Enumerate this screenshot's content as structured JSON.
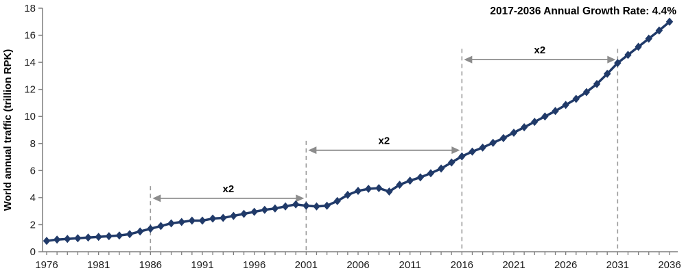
{
  "chart_data": {
    "type": "line",
    "title": "2017-2036 Annual Growth Rate: 4.4%",
    "xlabel": "",
    "ylabel": "World annual traffic (trillion RPK)",
    "xlim": [
      1976,
      2036
    ],
    "ylim": [
      0,
      18
    ],
    "grid": false,
    "legend": null,
    "marker": "diamond",
    "x": [
      1976,
      1977,
      1978,
      1979,
      1980,
      1981,
      1982,
      1983,
      1984,
      1985,
      1986,
      1987,
      1988,
      1989,
      1990,
      1991,
      1992,
      1993,
      1994,
      1995,
      1996,
      1997,
      1998,
      1999,
      2000,
      2001,
      2002,
      2003,
      2004,
      2005,
      2006,
      2007,
      2008,
      2009,
      2010,
      2011,
      2012,
      2013,
      2014,
      2015,
      2016,
      2017,
      2018,
      2019,
      2020,
      2021,
      2022,
      2023,
      2024,
      2025,
      2026,
      2027,
      2028,
      2029,
      2030,
      2031,
      2032,
      2033,
      2034,
      2035,
      2036
    ],
    "y": [
      0.8,
      0.9,
      0.95,
      1.0,
      1.05,
      1.1,
      1.15,
      1.2,
      1.3,
      1.5,
      1.7,
      1.9,
      2.1,
      2.2,
      2.3,
      2.3,
      2.45,
      2.5,
      2.65,
      2.8,
      2.95,
      3.1,
      3.2,
      3.35,
      3.5,
      3.4,
      3.35,
      3.4,
      3.75,
      4.2,
      4.5,
      4.65,
      4.7,
      4.45,
      4.95,
      5.25,
      5.5,
      5.8,
      6.15,
      6.6,
      7.05,
      7.4,
      7.7,
      8.05,
      8.4,
      8.8,
      9.2,
      9.6,
      10.0,
      10.4,
      10.85,
      11.3,
      11.8,
      12.4,
      13.15,
      13.95,
      14.55,
      15.15,
      15.75,
      16.35,
      17.0
    ],
    "y_ticks": [
      0,
      2,
      4,
      6,
      8,
      10,
      12,
      14,
      16,
      18
    ],
    "x_label_years": [
      1976,
      1981,
      1986,
      1991,
      1996,
      2001,
      2006,
      2011,
      2016,
      2021,
      2026,
      2031,
      2036
    ],
    "annotations": {
      "dashed_years": [
        1986,
        2001,
        2016,
        2031
      ],
      "dashed_top_values": [
        4.85,
        8.2,
        15.0,
        15.0
      ],
      "arrows": [
        {
          "from_year": 1986,
          "to_year": 2001,
          "label": "x2",
          "value": 3.95
        },
        {
          "from_year": 2001,
          "to_year": 2016,
          "label": "x2",
          "value": 7.5
        },
        {
          "from_year": 2016,
          "to_year": 2031,
          "label": "x2",
          "value": 14.2
        }
      ]
    }
  },
  "style": {
    "line_color": "#203A69",
    "axis_color": "#7F7F7F",
    "dashed_color": "#9A9A9A",
    "arrow_color": "#8C8C8C",
    "tick_text_color": "#1A1A1A",
    "annotation_text_color": "#000000"
  }
}
